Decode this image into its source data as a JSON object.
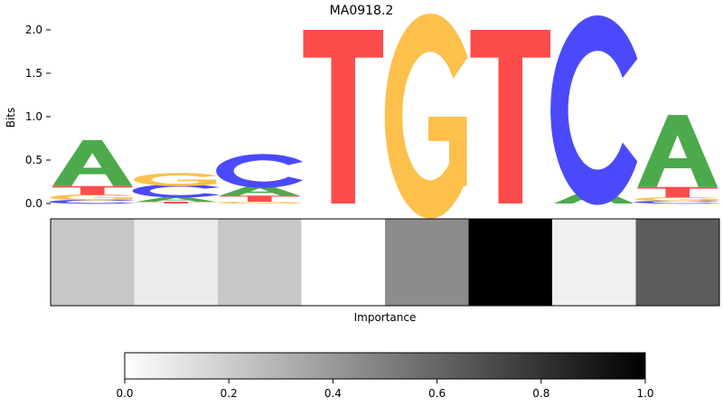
{
  "chart_data": [
    {
      "type": "sequence-logo",
      "title": "MA0918.2",
      "ylabel": "Bits",
      "ylim": [
        0,
        2.0
      ],
      "yticks": [
        "0.0",
        "0.5",
        "1.0",
        "1.5",
        "2.0"
      ],
      "colors": {
        "A": "#4caa4c",
        "C": "#4a4afc",
        "G": "#fdc04a",
        "T": "#fc4c4c"
      },
      "positions": [
        {
          "letters": [
            {
              "base": "C",
              "height": 0.04
            },
            {
              "base": "G",
              "height": 0.06
            },
            {
              "base": "T",
              "height": 0.1
            },
            {
              "base": "A",
              "height": 0.53
            }
          ]
        },
        {
          "letters": [
            {
              "base": "T",
              "height": 0.02
            },
            {
              "base": "A",
              "height": 0.06
            },
            {
              "base": "C",
              "height": 0.13
            },
            {
              "base": "G",
              "height": 0.13
            }
          ]
        },
        {
          "letters": [
            {
              "base": "G",
              "height": 0.02
            },
            {
              "base": "T",
              "height": 0.07
            },
            {
              "base": "A",
              "height": 0.12
            },
            {
              "base": "C",
              "height": 0.33
            }
          ]
        },
        {
          "letters": [
            {
              "base": "T",
              "height": 2.0
            }
          ]
        },
        {
          "letters": [
            {
              "base": "G",
              "height": 2.0
            }
          ]
        },
        {
          "letters": [
            {
              "base": "T",
              "height": 2.0
            }
          ]
        },
        {
          "letters": [
            {
              "base": "A",
              "height": 0.15
            },
            {
              "base": "C",
              "height": 1.85
            }
          ]
        },
        {
          "letters": [
            {
              "base": "C",
              "height": 0.03
            },
            {
              "base": "G",
              "height": 0.04
            },
            {
              "base": "T",
              "height": 0.12
            },
            {
              "base": "A",
              "height": 0.83
            }
          ]
        }
      ]
    },
    {
      "type": "heatmap",
      "xlabel": "Importance",
      "colormap": "gray_r",
      "values": [
        0.22,
        0.08,
        0.22,
        0.0,
        0.45,
        1.0,
        0.06,
        0.64
      ]
    },
    {
      "type": "colorbar",
      "range": [
        0,
        1.0
      ],
      "ticks": [
        "0.0",
        "0.2",
        "0.4",
        "0.6",
        "0.8",
        "1.0"
      ]
    }
  ]
}
